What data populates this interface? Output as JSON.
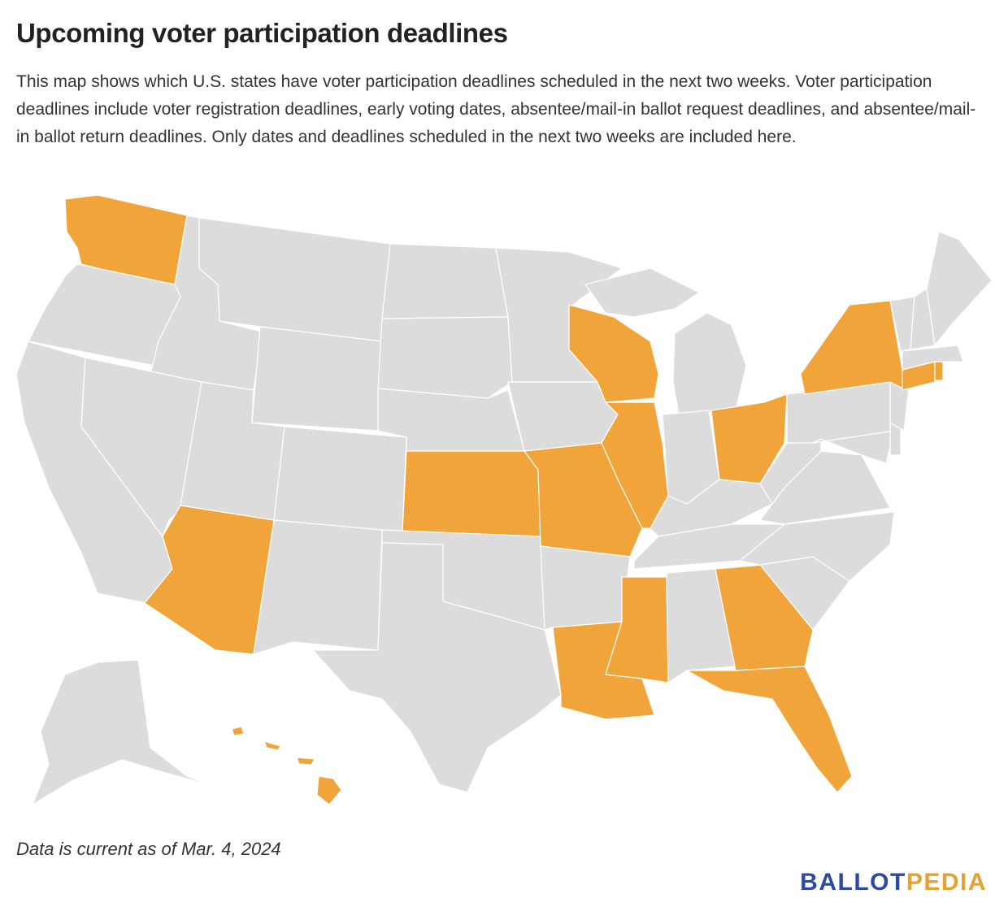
{
  "title": "Upcoming voter participation deadlines",
  "description": "This map shows which U.S. states have voter participation deadlines scheduled in the next two weeks. Voter participation deadlines include voter registration deadlines, early voting dates, absentee/mail-in ballot request deadlines, and absentee/mail-in ballot return deadlines. Only dates and deadlines scheduled in the next two weeks are included here.",
  "map": {
    "colors": {
      "highlighted": "#f0a43a",
      "default": "#dcdcdc",
      "border": "#ffffff"
    },
    "highlighted_states": [
      "Washington",
      "Arizona",
      "Kansas",
      "Missouri",
      "Wisconsin",
      "Illinois",
      "Ohio",
      "New York",
      "Connecticut",
      "Rhode Island",
      "Louisiana",
      "Mississippi",
      "Georgia",
      "Florida",
      "Hawaii"
    ]
  },
  "footnote": "Data is current as of Mar. 4, 2024",
  "logo": {
    "part1": "BALLOT",
    "part2": "PEDIA"
  }
}
